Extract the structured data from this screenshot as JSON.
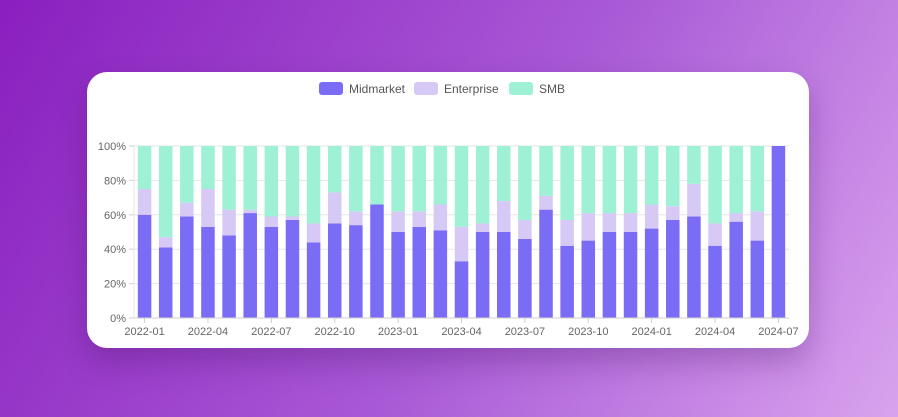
{
  "chart_data": {
    "type": "bar",
    "stacked": "percent",
    "legend": {
      "position": "top",
      "entries": [
        "Midmarket",
        "Enterprise",
        "SMB"
      ]
    },
    "colors": {
      "Midmarket": "#7b6cf6",
      "Enterprise": "#d7c9f5",
      "SMB": "#9ff1d6"
    },
    "x_ticks": [
      "2022-01",
      "2022-04",
      "2022-07",
      "2022-10",
      "2023-01",
      "2023-04",
      "2023-07",
      "2023-10",
      "2024-01",
      "2024-04",
      "2024-07"
    ],
    "y_ticks": [
      "0%",
      "20%",
      "40%",
      "60%",
      "80%",
      "100%"
    ],
    "ylim": [
      0,
      100
    ],
    "grid": true,
    "categories": [
      "2022-01",
      "2022-02",
      "2022-03",
      "2022-04",
      "2022-05",
      "2022-06",
      "2022-07",
      "2022-08",
      "2022-09",
      "2022-10",
      "2022-11",
      "2022-12",
      "2023-01",
      "2023-02",
      "2023-03",
      "2023-04",
      "2023-05",
      "2023-06",
      "2023-07",
      "2023-08",
      "2023-09",
      "2023-10",
      "2023-11",
      "2023-12",
      "2024-01",
      "2024-02",
      "2024-03",
      "2024-04",
      "2024-05",
      "2024-06",
      "2024-07"
    ],
    "series": [
      {
        "name": "Midmarket",
        "values": [
          60,
          41,
          59,
          53,
          48,
          61,
          53,
          57,
          44,
          55,
          54,
          66,
          50,
          53,
          51,
          33,
          50,
          50,
          46,
          63,
          42,
          45,
          50,
          50,
          52,
          57,
          59,
          42,
          56,
          45,
          100
        ]
      },
      {
        "name": "Enterprise",
        "values": [
          15,
          6,
          8,
          22,
          15,
          2,
          6,
          2,
          11,
          18,
          8,
          0,
          12,
          9,
          15,
          20,
          5,
          18,
          11,
          8,
          15,
          16,
          11,
          11,
          14,
          8,
          19,
          13,
          5,
          17,
          0
        ]
      },
      {
        "name": "SMB",
        "values": [
          25,
          53,
          33,
          25,
          37,
          37,
          41,
          41,
          45,
          27,
          38,
          34,
          38,
          38,
          34,
          47,
          45,
          32,
          43,
          29,
          43,
          39,
          39,
          39,
          34,
          35,
          22,
          45,
          39,
          38,
          0
        ]
      }
    ]
  }
}
